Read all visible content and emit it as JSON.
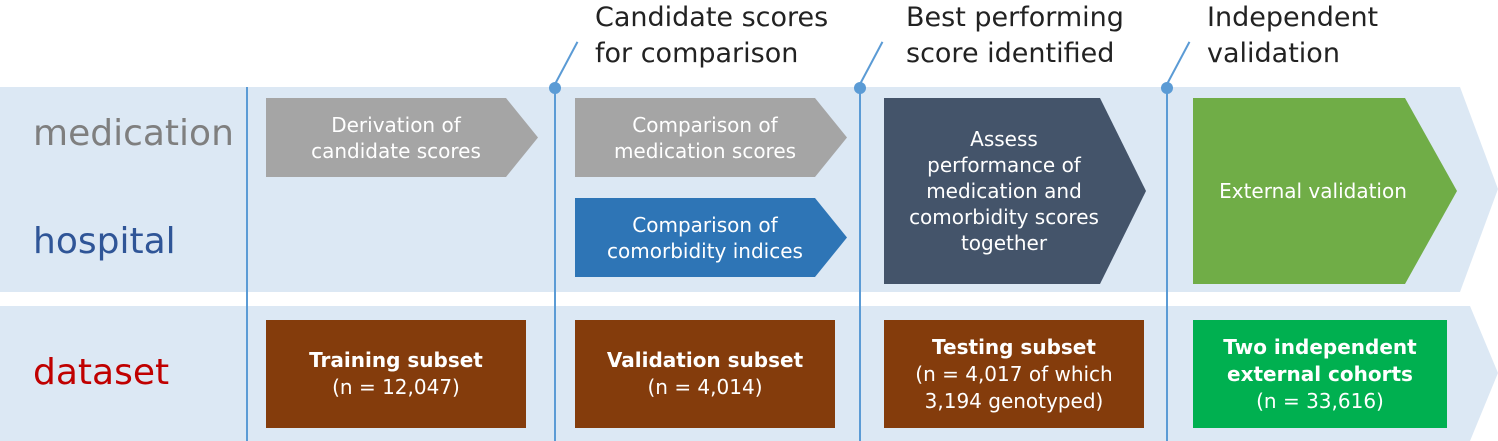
{
  "colors": {
    "band": "#dce8f4",
    "timeline": "#5b9bd5",
    "gray": "#a5a5a5",
    "blue": "#2e75b6",
    "slate": "#44546a",
    "green": "#70ad47",
    "brown": "#843c0c",
    "bright_green": "#00b050",
    "label_medication": "#7f7f7f",
    "label_hospital": "#2f5597",
    "label_dataset": "#c00000"
  },
  "row_labels": {
    "medication": "medication",
    "hospital": "hospital",
    "dataset": "dataset"
  },
  "headings": {
    "stage2": "Candidate scores\nfor comparison",
    "stage3": "Best performing\nscore identified",
    "stage4": "Independent\nvalidation"
  },
  "shapes": {
    "derivation": "Derivation of\ncandidate scores",
    "comparison_medication": "Comparison of\nmedication scores",
    "comparison_comorbidity": "Comparison of\ncomorbidity indices",
    "assess": "Assess\nperformance of\nmedication and\ncomorbidity scores\ntogether",
    "external": "External validation"
  },
  "datasets": {
    "training": {
      "title": "Training subset",
      "detail": "(n = 12,047)"
    },
    "validation": {
      "title": "Validation subset",
      "detail": "(n = 4,014)"
    },
    "testing": {
      "title": "Testing subset",
      "detail": "(n = 4,017 of which\n3,194 genotyped)"
    },
    "external": {
      "title": "Two independent\nexternal cohorts",
      "detail": "(n = 33,616)"
    }
  }
}
